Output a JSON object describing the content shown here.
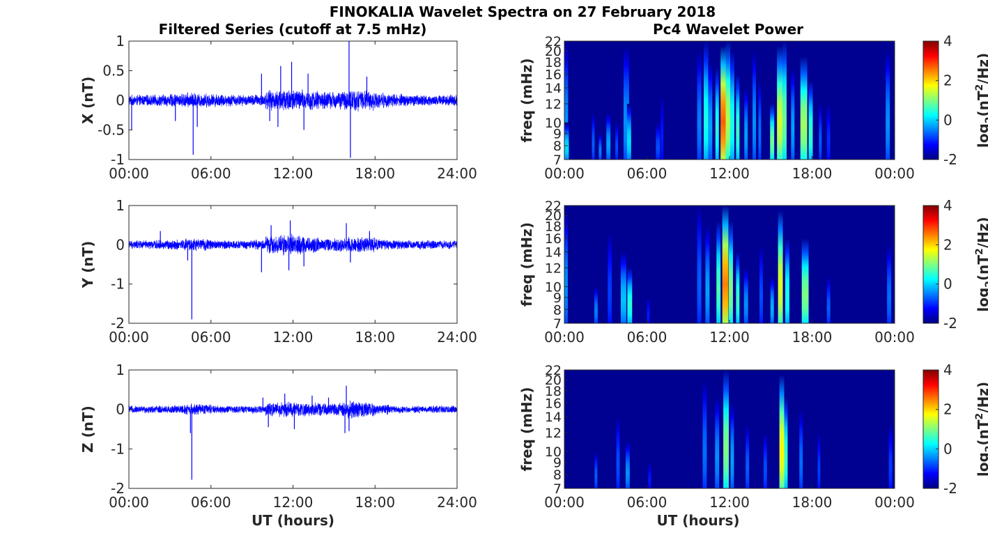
{
  "title": "FINOKALIA Wavelet Spectra on 27 February 2018",
  "left_title": "Filtered Series (cutoff at 7.5 mHz)",
  "right_title": "Pc4 Wavelet Power",
  "colors": {
    "series": "#0000ff",
    "background": "#ffffff",
    "axis": "#262626"
  },
  "chart_data": [
    {
      "type": "line",
      "name": "x-series",
      "ylabel": "X (nT)",
      "xlabel": "",
      "x_ticks": [
        "00:00",
        "06:00",
        "12:00",
        "18:00",
        "24:00"
      ],
      "xlim_hours": [
        0,
        24
      ],
      "ylim": [
        -1,
        1
      ],
      "y_ticks": [
        1,
        0.5,
        0,
        -0.5,
        -1
      ],
      "y_tick_labels": [
        "1",
        "0.5",
        "0",
        "-0.5",
        "-1"
      ],
      "series": [
        {
          "noise_amplitude_by_hour": [
            0.1,
            0.1,
            0.11,
            0.12,
            0.14,
            0.13,
            0.12,
            0.11,
            0.1,
            0.11,
            0.18,
            0.22,
            0.2,
            0.18,
            0.16,
            0.17,
            0.2,
            0.18,
            0.14,
            0.12,
            0.11,
            0.1,
            0.1,
            0.1
          ],
          "spikes": [
            [
              0.2,
              -0.5
            ],
            [
              3.4,
              -0.35
            ],
            [
              4.7,
              -0.92
            ],
            [
              5.0,
              -0.45
            ],
            [
              9.7,
              0.45
            ],
            [
              10.3,
              -0.35
            ],
            [
              11.1,
              0.58
            ],
            [
              11.9,
              0.65
            ],
            [
              12.8,
              -0.5
            ],
            [
              13.1,
              0.45
            ],
            [
              16.1,
              1.0
            ],
            [
              16.2,
              -0.97
            ],
            [
              17.4,
              0.4
            ],
            [
              10.9,
              -0.45
            ]
          ]
        }
      ]
    },
    {
      "type": "line",
      "name": "y-series",
      "ylabel": "Y (nT)",
      "xlabel": "",
      "x_ticks": [
        "00:00",
        "06:00",
        "12:00",
        "18:00",
        "24:00"
      ],
      "xlim_hours": [
        0,
        24
      ],
      "ylim": [
        -2,
        1
      ],
      "y_ticks": [
        1,
        0,
        -1,
        -2
      ],
      "y_tick_labels": [
        "1",
        "0",
        "-1",
        "-2"
      ],
      "series": [
        {
          "noise_amplitude_by_hour": [
            0.12,
            0.12,
            0.13,
            0.14,
            0.18,
            0.16,
            0.13,
            0.12,
            0.12,
            0.14,
            0.25,
            0.3,
            0.28,
            0.22,
            0.18,
            0.2,
            0.24,
            0.22,
            0.16,
            0.13,
            0.12,
            0.12,
            0.12,
            0.12
          ],
          "spikes": [
            [
              4.6,
              -1.9
            ],
            [
              4.3,
              -0.4
            ],
            [
              9.7,
              -0.7
            ],
            [
              10.4,
              0.5
            ],
            [
              11.7,
              -0.65
            ],
            [
              11.8,
              0.62
            ],
            [
              12.8,
              -0.55
            ],
            [
              15.9,
              0.55
            ],
            [
              16.2,
              -0.45
            ],
            [
              17.6,
              0.35
            ],
            [
              2.3,
              0.35
            ]
          ]
        }
      ]
    },
    {
      "type": "line",
      "name": "z-series",
      "ylabel": "Z (nT)",
      "xlabel": "UT (hours)",
      "x_ticks": [
        "00:00",
        "06:00",
        "12:00",
        "18:00",
        "24:00"
      ],
      "xlim_hours": [
        0,
        24
      ],
      "ylim": [
        -2,
        1
      ],
      "y_ticks": [
        1,
        0,
        -1,
        -2
      ],
      "y_tick_labels": [
        "1",
        "0",
        "-1",
        "-2"
      ],
      "series": [
        {
          "noise_amplitude_by_hour": [
            0.1,
            0.1,
            0.11,
            0.12,
            0.16,
            0.14,
            0.11,
            0.1,
            0.1,
            0.11,
            0.18,
            0.22,
            0.2,
            0.18,
            0.16,
            0.19,
            0.25,
            0.2,
            0.14,
            0.11,
            0.1,
            0.1,
            0.1,
            0.1
          ],
          "spikes": [
            [
              4.6,
              -1.78
            ],
            [
              4.5,
              -0.6
            ],
            [
              10.2,
              -0.45
            ],
            [
              11.4,
              0.4
            ],
            [
              12.1,
              -0.5
            ],
            [
              13.4,
              0.35
            ],
            [
              15.8,
              -0.6
            ],
            [
              15.9,
              0.6
            ],
            [
              16.1,
              -0.55
            ],
            [
              14.6,
              0.3
            ],
            [
              9.8,
              0.3
            ]
          ]
        }
      ]
    },
    {
      "type": "heatmap",
      "name": "x-wavelet",
      "ylabel": "freq (mHz)",
      "xlabel": "",
      "x_ticks": [
        "00:00",
        "06:00",
        "12:00",
        "18:00",
        "00:00"
      ],
      "xlim_hours": [
        0,
        24
      ],
      "ylim_mhz": [
        7,
        22
      ],
      "y_tick_values": [
        7,
        8,
        9,
        10,
        12,
        14,
        16,
        18,
        20,
        22
      ],
      "colorbar": {
        "label_main": "log",
        "label_sub": "2",
        "label_rest": "(nT",
        "label_sup": "2",
        "label_end": "/Hz)",
        "range": [
          -2,
          4
        ],
        "ticks": [
          "4",
          "2",
          "0",
          "-2"
        ]
      },
      "streaks": [
        [
          0.02,
          0.5,
          22,
          -0.5
        ],
        [
          0.15,
          0.35,
          10,
          0.0
        ],
        [
          2.1,
          0.2,
          11,
          -0.8
        ],
        [
          2.6,
          0.2,
          9,
          -0.6
        ],
        [
          3.2,
          0.3,
          11,
          -0.4
        ],
        [
          3.8,
          0.2,
          10,
          -0.9
        ],
        [
          4.5,
          0.4,
          21,
          -0.5
        ],
        [
          4.7,
          0.3,
          12,
          0.0
        ],
        [
          6.8,
          0.3,
          10,
          -0.9
        ],
        [
          7.1,
          0.2,
          13,
          -1.2
        ],
        [
          9.8,
          0.3,
          20,
          -0.6
        ],
        [
          10.3,
          0.35,
          22,
          0.3
        ],
        [
          10.6,
          0.3,
          18,
          -0.4
        ],
        [
          11.1,
          0.25,
          17,
          0.4
        ],
        [
          11.55,
          0.4,
          21,
          2.6
        ],
        [
          11.9,
          0.35,
          22,
          1.2
        ],
        [
          12.2,
          0.3,
          20,
          0.3
        ],
        [
          12.6,
          0.25,
          16,
          0.5
        ],
        [
          13.2,
          0.25,
          14,
          -0.4
        ],
        [
          13.8,
          0.25,
          20,
          -0.5
        ],
        [
          14.2,
          0.2,
          15,
          -0.7
        ],
        [
          15.1,
          0.3,
          12,
          0.8
        ],
        [
          15.65,
          0.4,
          21,
          1.4
        ],
        [
          16.0,
          0.3,
          22,
          0.8
        ],
        [
          16.6,
          0.25,
          17,
          -0.4
        ],
        [
          17.4,
          0.5,
          19,
          1.1
        ],
        [
          17.9,
          0.3,
          15,
          0.5
        ],
        [
          18.6,
          0.2,
          12,
          -0.8
        ],
        [
          19.2,
          0.25,
          12,
          -1.1
        ],
        [
          23.5,
          0.3,
          20,
          -0.5
        ]
      ]
    },
    {
      "type": "heatmap",
      "name": "y-wavelet",
      "ylabel": "freq (mHz)",
      "xlabel": "",
      "x_ticks": [
        "00:00",
        "06:00",
        "12:00",
        "18:00",
        "00:00"
      ],
      "xlim_hours": [
        0,
        24
      ],
      "ylim_mhz": [
        7,
        22
      ],
      "y_tick_values": [
        7,
        8,
        9,
        10,
        12,
        14,
        16,
        18,
        20,
        22
      ],
      "colorbar": {
        "label_main": "log",
        "label_sub": "2",
        "label_rest": "(nT",
        "label_sup": "2",
        "label_end": "/Hz)",
        "range": [
          -2,
          4
        ],
        "ticks": [
          "4",
          "2",
          "0",
          "-2"
        ]
      },
      "streaks": [
        [
          0.1,
          0.3,
          21,
          -0.5
        ],
        [
          2.3,
          0.25,
          10,
          -0.6
        ],
        [
          3.3,
          0.3,
          17,
          -1.0
        ],
        [
          4.3,
          0.4,
          14,
          -0.2
        ],
        [
          4.75,
          0.35,
          12,
          0.4
        ],
        [
          6.1,
          0.2,
          9,
          -1.2
        ],
        [
          9.8,
          0.3,
          22,
          -0.8
        ],
        [
          10.4,
          0.3,
          18,
          -0.4
        ],
        [
          11.2,
          0.3,
          19,
          0.6
        ],
        [
          11.7,
          0.45,
          22,
          2.4
        ],
        [
          12.1,
          0.3,
          19,
          0.9
        ],
        [
          12.6,
          0.25,
          14,
          0.5
        ],
        [
          13.2,
          0.3,
          12,
          -0.5
        ],
        [
          14.3,
          0.25,
          15,
          -0.9
        ],
        [
          15.1,
          0.25,
          11,
          -0.3
        ],
        [
          15.7,
          0.35,
          21,
          1.5
        ],
        [
          16.2,
          0.3,
          16,
          0.3
        ],
        [
          17.5,
          0.5,
          16,
          0.9
        ],
        [
          19.2,
          0.25,
          11,
          -0.8
        ],
        [
          23.6,
          0.3,
          15,
          -0.7
        ]
      ]
    },
    {
      "type": "heatmap",
      "name": "z-wavelet",
      "ylabel": "freq (mHz)",
      "xlabel": "UT (hours)",
      "x_ticks": [
        "00:00",
        "06:00",
        "12:00",
        "18:00",
        "00:00"
      ],
      "xlim_hours": [
        0,
        24
      ],
      "ylim_mhz": [
        7,
        22
      ],
      "y_tick_values": [
        7,
        8,
        9,
        10,
        12,
        14,
        16,
        18,
        20,
        22
      ],
      "colorbar": {
        "label_main": "log",
        "label_sub": "2",
        "label_rest": "(nT",
        "label_sup": "2",
        "label_end": "/Hz)",
        "range": [
          -2,
          4
        ],
        "ticks": [
          "4",
          "2",
          "0",
          "-2"
        ]
      },
      "streaks": [
        [
          2.3,
          0.2,
          10,
          -0.8
        ],
        [
          3.9,
          0.25,
          14,
          -0.9
        ],
        [
          4.6,
          0.3,
          11,
          -0.5
        ],
        [
          6.2,
          0.2,
          9,
          -1.2
        ],
        [
          10.2,
          0.3,
          20,
          -0.7
        ],
        [
          11.1,
          0.3,
          17,
          -0.5
        ],
        [
          11.75,
          0.4,
          22,
          0.9
        ],
        [
          12.2,
          0.25,
          16,
          -0.4
        ],
        [
          13.3,
          0.25,
          13,
          -0.8
        ],
        [
          14.6,
          0.25,
          12,
          -0.9
        ],
        [
          15.8,
          0.35,
          21,
          1.7
        ],
        [
          16.1,
          0.25,
          17,
          0.5
        ],
        [
          17.2,
          0.25,
          15,
          -0.7
        ],
        [
          18.5,
          0.2,
          12,
          -1.0
        ],
        [
          23.7,
          0.25,
          13,
          -1.0
        ]
      ]
    }
  ]
}
